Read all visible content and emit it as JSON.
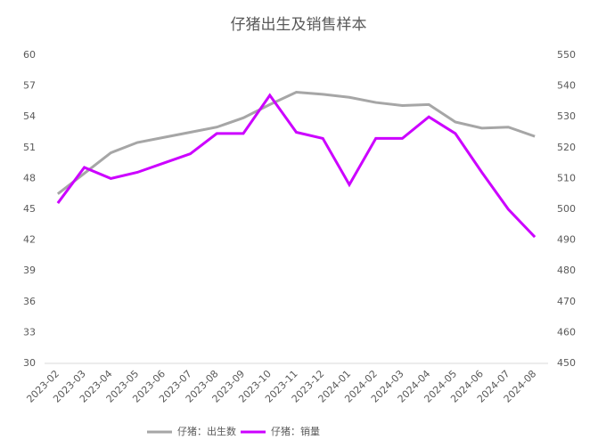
{
  "chart_data": {
    "type": "line",
    "title": "仔猪出生及销售样本",
    "categories": [
      "2023-02",
      "2023-03",
      "2023-04",
      "2023-05",
      "2023-06",
      "2023-07",
      "2023-08",
      "2023-09",
      "2023-10",
      "2023-11",
      "2023-12",
      "2024-01",
      "2024-02",
      "2024-03",
      "2024-04",
      "2024-05",
      "2024-06",
      "2024-07",
      "2024-08"
    ],
    "series": [
      {
        "name": "仔猪：出生数",
        "color": "#a6a6a6",
        "values": [
          46.5,
          48.5,
          50.5,
          51.5,
          52,
          52.5,
          53,
          53.9,
          55.2,
          56.4,
          56.2,
          55.9,
          55.4,
          55.1,
          55.2,
          53.5,
          52.9,
          53,
          52.1
        ]
      },
      {
        "name": "仔猪：销量",
        "color": "#cc00ff",
        "axis": "y2",
        "values": [
          502,
          513.6,
          510,
          512,
          515,
          518,
          524.6,
          524.6,
          537,
          525,
          523,
          508,
          523,
          523,
          530,
          524.6,
          512,
          500,
          491
        ]
      }
    ],
    "ylim": [
      30,
      60
    ],
    "yticks": [
      30,
      33,
      36,
      39,
      42,
      45,
      48,
      51,
      54,
      57,
      60
    ],
    "y2lim": [
      450,
      550
    ],
    "y2ticks": [
      450,
      460,
      470,
      480,
      490,
      500,
      510,
      520,
      530,
      540,
      550
    ]
  }
}
